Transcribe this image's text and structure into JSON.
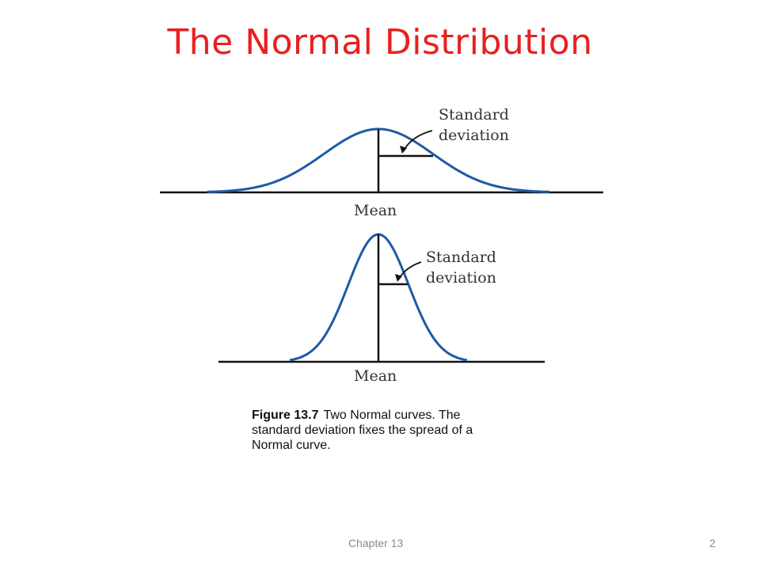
{
  "slide": {
    "title": "The Normal Distribution"
  },
  "figure": {
    "curves": [
      {
        "peak_label_line1": "Standard",
        "peak_label_line2": "deviation",
        "axis_label": "Mean",
        "sd_ratio": 1.0
      },
      {
        "peak_label_line1": "Standard",
        "peak_label_line2": "deviation",
        "axis_label": "Mean",
        "sd_ratio": 0.55
      }
    ],
    "colors": {
      "curve": "#1f5aa6",
      "axis": "#111111"
    }
  },
  "caption": {
    "label": "Figure 13.7",
    "text": "Two Normal curves. The standard deviation fixes the spread of a Normal curve."
  },
  "footer": {
    "chapter": "Chapter 13",
    "page_number": "2"
  }
}
